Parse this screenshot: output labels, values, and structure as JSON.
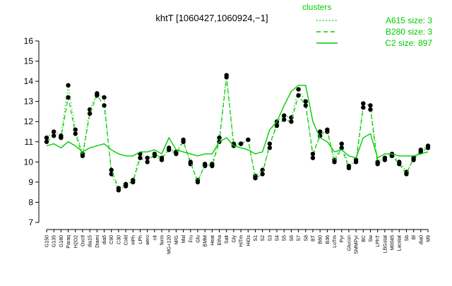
{
  "chart_data": {
    "type": "line",
    "title": "khtT [1060427,1060924,−1]",
    "legend_title": "clusters",
    "legend_position": "top-right",
    "categories": [
      "G150",
      "G135",
      "G180",
      "Paraq",
      "H2O2",
      "Oxctl",
      "dia15",
      "Diami",
      "dia5",
      "C90",
      "C30",
      "Cold",
      "HPh",
      "LPh",
      "aero",
      "nit",
      "ferm",
      "MG+120",
      "M/G",
      "Mal",
      "Fru",
      "Glu",
      "BMM",
      "Heat",
      "Etha",
      "Salt",
      "Gly",
      "HiTm",
      "HiOs",
      "S1",
      "S2",
      "S3",
      "S4",
      "S5",
      "S6",
      "S7",
      "S8",
      "BT",
      "B60",
      "B36",
      "LoTm",
      "Pyr",
      "Glucon",
      "SMMPyr",
      "BC",
      "Sw",
      "LPhT",
      "LBGstat",
      "M0045",
      "Lacstat",
      "Sb",
      "Bl",
      "dia0",
      "M9"
    ],
    "series": [
      {
        "name": "A615 size: 3",
        "color": "#00cc00",
        "line_style": "dotted",
        "points": true,
        "values": [
          11.2,
          11.5,
          11.3,
          13.8,
          11.6,
          10.4,
          12.6,
          13.4,
          13.2,
          9.4,
          8.6,
          8.8,
          9.1,
          10.4,
          10.2,
          10.3,
          10.1,
          10.7,
          10.5,
          11.1,
          9.9,
          9.1,
          9.8,
          9.9,
          11.2,
          14.3,
          10.9,
          10.9,
          11.1,
          9.3,
          9.6,
          10.7,
          12.0,
          12.3,
          12.2,
          13.6,
          13.0,
          10.2,
          11.5,
          11.5,
          10.1,
          10.9,
          9.8,
          10.1,
          12.9,
          12.8,
          10.0,
          10.2,
          10.4,
          10.0,
          9.5,
          10.1,
          10.6,
          10.8
        ]
      },
      {
        "name": "B280 size: 3",
        "color": "#00cc00",
        "line_style": "dashed",
        "points": true,
        "values": [
          11.0,
          11.3,
          11.2,
          13.2,
          11.4,
          10.3,
          12.4,
          13.3,
          12.8,
          9.6,
          8.7,
          8.9,
          9.0,
          10.2,
          10.0,
          10.4,
          10.2,
          10.6,
          10.4,
          11.0,
          10.0,
          9.0,
          9.9,
          9.8,
          11.0,
          14.2,
          10.8,
          10.9,
          11.1,
          9.2,
          9.4,
          10.9,
          11.8,
          12.1,
          12.0,
          13.3,
          12.8,
          10.4,
          11.3,
          11.6,
          10.0,
          10.7,
          9.7,
          10.0,
          12.7,
          12.6,
          9.9,
          10.1,
          10.3,
          9.9,
          9.4,
          10.2,
          10.5,
          10.7
        ]
      },
      {
        "name": "C2 size: 897",
        "color": "#00cc00",
        "line_style": "solid",
        "points": false,
        "values": [
          10.8,
          10.9,
          10.7,
          11.0,
          10.8,
          10.5,
          10.7,
          10.8,
          10.9,
          10.6,
          10.4,
          10.3,
          10.3,
          10.5,
          10.5,
          10.6,
          10.4,
          11.2,
          10.6,
          10.5,
          10.4,
          10.3,
          10.4,
          10.4,
          11.0,
          11.2,
          10.8,
          10.7,
          10.6,
          10.4,
          10.5,
          11.6,
          12.0,
          12.8,
          13.5,
          13.8,
          13.8,
          12.0,
          11.2,
          11.0,
          10.5,
          10.6,
          10.3,
          10.2,
          11.2,
          11.4,
          10.2,
          10.4,
          10.4,
          10.3,
          10.3,
          10.3,
          10.4,
          10.5
        ]
      }
    ],
    "ylim": [
      7,
      16
    ],
    "yticks": [
      7,
      8,
      9,
      10,
      11,
      12,
      13,
      14,
      15,
      16
    ],
    "grid": false
  }
}
